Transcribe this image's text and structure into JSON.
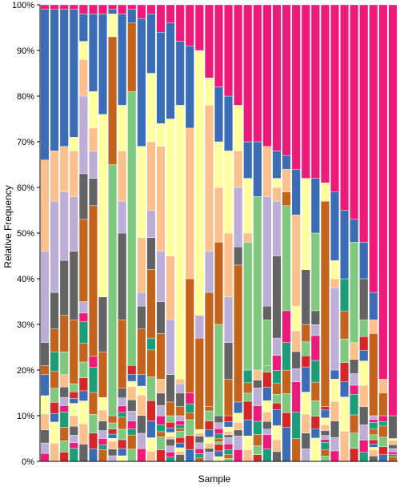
{
  "chart_data": {
    "type": "bar",
    "stacked": true,
    "normalized": true,
    "title": "",
    "xlabel": "Sample",
    "ylabel": "Relative Frequency",
    "ylim": [
      0,
      100
    ],
    "y_ticks": [
      "0%",
      "10%",
      "20%",
      "30%",
      "40%",
      "50%",
      "60%",
      "70%",
      "80%",
      "90%",
      "100%"
    ],
    "grid": false,
    "legend": "none",
    "sample_count": 37,
    "taxa_colors": {
      "dominant_magenta": "#EE1A7A",
      "blue": "#3A6DB5",
      "peach": "#FBC08C",
      "lavender": "#BCAED6",
      "dark_gray": "#636363",
      "yellow": "#FFFF9E",
      "green": "#7FC97F",
      "orange_brown": "#C4631B",
      "small_pink": "#EE1A7A",
      "small_red": "#D62728",
      "small_teal": "#1B9E77"
    },
    "series_order": [
      "small_mix",
      "green",
      "orange",
      "gray",
      "lavender",
      "peach",
      "yellow",
      "blue",
      "magenta"
    ],
    "samples": [
      {
        "magenta": 1,
        "blue": 33,
        "yellow": 0,
        "peach": 20,
        "lavender": 20,
        "gray": 5,
        "orange": 2,
        "green": 0,
        "small_mix": 19
      },
      {
        "magenta": 1,
        "blue": 31,
        "yellow": 0,
        "peach": 11,
        "lavender": 20,
        "gray": 8,
        "orange": 5,
        "green": 0,
        "small_mix": 24
      },
      {
        "magenta": 1,
        "blue": 30,
        "yellow": 0,
        "peach": 10,
        "lavender": 15,
        "gray": 12,
        "orange": 8,
        "green": 5,
        "small_mix": 19
      },
      {
        "magenta": 1,
        "blue": 28,
        "yellow": 3,
        "peach": 10,
        "lavender": 12,
        "gray": 15,
        "orange": 14,
        "green": 0,
        "small_mix": 17
      },
      {
        "magenta": 2,
        "blue": 6,
        "yellow": 4,
        "peach": 8,
        "lavender": 17,
        "gray": 10,
        "orange": 18,
        "green": 0,
        "small_mix": 35
      },
      {
        "magenta": 2,
        "blue": 17,
        "yellow": 8,
        "peach": 5,
        "lavender": 6,
        "gray": 6,
        "orange": 33,
        "green": 0,
        "small_mix": 23
      },
      {
        "magenta": 2,
        "blue": 22,
        "yellow": 40,
        "peach": 0,
        "lavender": 0,
        "gray": 12,
        "orange": 10,
        "green": 0,
        "small_mix": 14
      },
      {
        "magenta": 1,
        "blue": 1,
        "yellow": 5,
        "peach": 0,
        "lavender": 0,
        "gray": 0,
        "orange": 28,
        "green": 55,
        "small_mix": 10
      },
      {
        "magenta": 2,
        "blue": 20,
        "yellow": 10,
        "peach": 11,
        "lavender": 7,
        "gray": 19,
        "orange": 15,
        "green": 0,
        "small_mix": 16
      },
      {
        "magenta": 1,
        "blue": 3,
        "yellow": 0,
        "peach": 0,
        "lavender": 0,
        "gray": 0,
        "orange": 15,
        "green": 60,
        "small_mix": 21
      },
      {
        "magenta": 3,
        "blue": 28,
        "yellow": 20,
        "peach": 12,
        "lavender": 3,
        "gray": 5,
        "orange": 10,
        "green": 0,
        "small_mix": 19
      },
      {
        "magenta": 2,
        "blue": 13,
        "yellow": 15,
        "peach": 15,
        "lavender": 6,
        "gray": 7,
        "orange": 15,
        "green": 0,
        "small_mix": 27
      },
      {
        "magenta": 6,
        "blue": 20,
        "yellow": 5,
        "peach": 23,
        "lavender": 11,
        "gray": 7,
        "orange": 10,
        "green": 0,
        "small_mix": 18
      },
      {
        "magenta": 4,
        "blue": 21,
        "yellow": 30,
        "peach": 14,
        "lavender": 12,
        "gray": 6,
        "orange": 3,
        "green": 0,
        "small_mix": 10
      },
      {
        "magenta": 8,
        "blue": 14,
        "yellow": 60,
        "peach": 1,
        "lavender": 2,
        "gray": 3,
        "orange": 2,
        "green": 0,
        "small_mix": 10
      },
      {
        "magenta": 9,
        "blue": 18,
        "yellow": 0,
        "peach": 33,
        "lavender": 0,
        "gray": 0,
        "orange": 25,
        "green": 0,
        "small_mix": 15
      },
      {
        "magenta": 10,
        "blue": 0,
        "yellow": 58,
        "peach": 0,
        "lavender": 5,
        "gray": 0,
        "orange": 20,
        "green": 0,
        "small_mix": 7
      },
      {
        "magenta": 16,
        "blue": 0,
        "yellow": 6,
        "peach": 32,
        "lavender": 9,
        "gray": 0,
        "orange": 25,
        "green": 0,
        "small_mix": 12
      },
      {
        "magenta": 18,
        "blue": 12,
        "yellow": 10,
        "peach": 12,
        "lavender": 0,
        "gray": 0,
        "orange": 18,
        "green": 20,
        "small_mix": 10
      },
      {
        "magenta": 20,
        "blue": 12,
        "yellow": 18,
        "peach": 14,
        "lavender": 10,
        "gray": 8,
        "orange": 8,
        "green": 0,
        "small_mix": 10
      },
      {
        "magenta": 22,
        "blue": 0,
        "yellow": 10,
        "peach": 8,
        "lavender": 13,
        "gray": 4,
        "orange": 30,
        "green": 0,
        "small_mix": 13
      },
      {
        "magenta": 30,
        "blue": 8,
        "yellow": 12,
        "peach": 2,
        "lavender": 0,
        "gray": 0,
        "orange": 0,
        "green": 28,
        "small_mix": 20
      },
      {
        "magenta": 30,
        "blue": 12,
        "yellow": 0,
        "peach": 0,
        "lavender": 0,
        "gray": 0,
        "orange": 0,
        "green": 38,
        "small_mix": 20
      },
      {
        "magenta": 31,
        "blue": 0,
        "yellow": 0,
        "peach": 11,
        "lavender": 24,
        "gray": 3,
        "orange": 0,
        "green": 10,
        "small_mix": 21
      },
      {
        "magenta": 32,
        "blue": 6,
        "yellow": 2,
        "peach": 3,
        "lavender": 12,
        "gray": 18,
        "orange": 0,
        "green": 0,
        "small_mix": 27
      },
      {
        "magenta": 33,
        "blue": 3,
        "yellow": 0,
        "peach": 5,
        "lavender": 0,
        "gray": 0,
        "orange": 3,
        "green": 23,
        "small_mix": 33
      },
      {
        "magenta": 36,
        "blue": 10,
        "yellow": 0,
        "peach": 20,
        "lavender": 0,
        "gray": 0,
        "orange": 0,
        "green": 0,
        "small_mix": 34
      },
      {
        "magenta": 38,
        "blue": 0,
        "yellow": 20,
        "peach": 0,
        "lavender": 0,
        "gray": 12,
        "orange": 0,
        "green": 0,
        "small_mix": 30
      },
      {
        "magenta": 38,
        "blue": 12,
        "yellow": 0,
        "peach": 0,
        "lavender": 0,
        "gray": 0,
        "orange": 0,
        "green": 17,
        "small_mix": 33
      },
      {
        "magenta": 39,
        "blue": 0,
        "yellow": 4,
        "peach": 0,
        "lavender": 0,
        "gray": 0,
        "orange": 45,
        "green": 0,
        "small_mix": 12
      },
      {
        "magenta": 41,
        "blue": 15,
        "yellow": 4,
        "peach": 2,
        "lavender": 18,
        "gray": 0,
        "orange": 0,
        "green": 0,
        "small_mix": 20
      },
      {
        "magenta": 45,
        "blue": 15,
        "yellow": 0,
        "peach": 0,
        "lavender": 0,
        "gray": 0,
        "orange": 0,
        "green": 0,
        "small_mix": 40
      },
      {
        "magenta": 47,
        "blue": 5,
        "yellow": 0,
        "peach": 0,
        "lavender": 0,
        "gray": 0,
        "orange": 0,
        "green": 22,
        "small_mix": 26
      },
      {
        "magenta": 52,
        "blue": 8,
        "yellow": 0,
        "peach": 0,
        "lavender": 0,
        "gray": 9,
        "orange": 0,
        "green": 0,
        "small_mix": 31
      },
      {
        "magenta": 63,
        "blue": 6,
        "yellow": 0,
        "peach": 3,
        "lavender": 0,
        "gray": 0,
        "orange": 18,
        "green": 0,
        "small_mix": 10
      },
      {
        "magenta": 82,
        "blue": 0,
        "yellow": 0,
        "peach": 3,
        "lavender": 0,
        "gray": 0,
        "orange": 5,
        "green": 0,
        "small_mix": 10
      },
      {
        "magenta": 90,
        "blue": 0,
        "yellow": 0,
        "peach": 0,
        "lavender": 0,
        "gray": 5,
        "orange": 0,
        "green": 0,
        "small_mix": 5
      }
    ]
  }
}
